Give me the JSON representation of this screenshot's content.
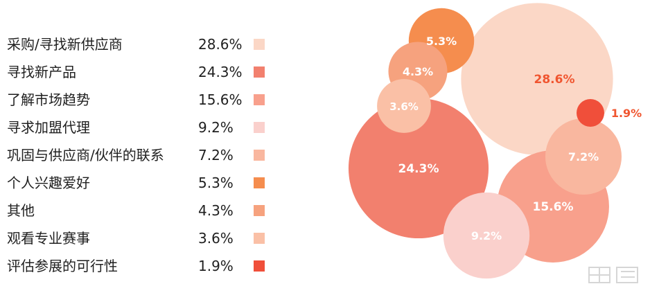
{
  "chart_data": {
    "type": "bubble",
    "title": "",
    "categories": [
      "采购/寻找新供应商",
      "寻找新产品",
      "了解市场趋势",
      "寻求加盟代理",
      "巩固与供应商/伙伴的联系",
      "个人兴趣爱好",
      "其他",
      "观看专业赛事",
      "评估参展的可行性"
    ],
    "values": [
      28.6,
      24.3,
      15.6,
      9.2,
      7.2,
      5.3,
      4.3,
      3.6,
      1.9
    ],
    "value_labels": [
      "28.6%",
      "24.3%",
      "15.6%",
      "9.2%",
      "7.2%",
      "5.3%",
      "4.3%",
      "3.6%",
      "1.9%"
    ],
    "colors": [
      "#fbd7c6",
      "#f2806e",
      "#f8a08c",
      "#fad0cc",
      "#f9b79f",
      "#f58d4e",
      "#f6a27e",
      "#fac0a6",
      "#f04f3a"
    ],
    "legend": "left",
    "grid": false
  }
}
